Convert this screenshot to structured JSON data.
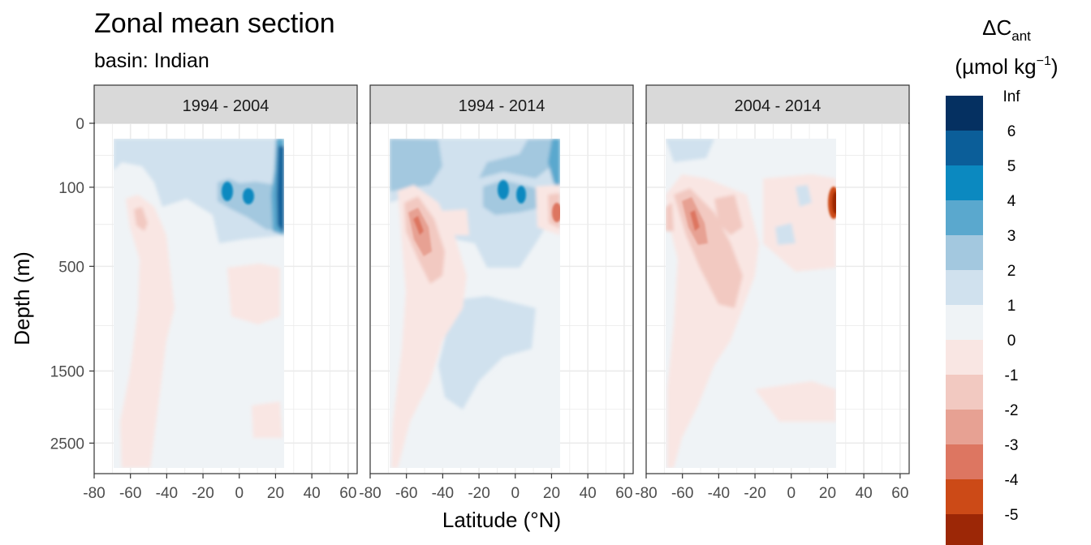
{
  "chart_data": {
    "type": "heatmap",
    "title": "Zonal mean section",
    "subtitle": "basin: Indian",
    "xlabel": "Latitude (°N)",
    "ylabel": "Depth (m)",
    "xlim": [
      -80,
      65
    ],
    "x_ticks": [
      -80,
      -60,
      -40,
      -20,
      0,
      20,
      40,
      60
    ],
    "y_scale": "sqrt",
    "ylim_depth": [
      3000,
      0
    ],
    "y_ticks": [
      0,
      100,
      500,
      1500,
      2500
    ],
    "data_extent": {
      "lat": [
        -70,
        24
      ],
      "depth": [
        10,
        3000
      ]
    },
    "grid": true,
    "facets": [
      {
        "label": "1994 - 2004"
      },
      {
        "label": "1994 - 2014"
      },
      {
        "label": "2004 - 2014"
      }
    ],
    "legend": {
      "title_main": "ΔC",
      "title_sub": "ant",
      "unit_open": "(µmol kg",
      "unit_sup": "−1",
      "unit_close": ")",
      "placement": "right",
      "breaks": [
        "Inf",
        "6",
        "5",
        "4",
        "3",
        "2",
        "1",
        "0",
        "-1",
        "-2",
        "-3",
        "-4",
        "-5"
      ],
      "colors": [
        "#053061",
        "#0b5e99",
        "#0b89c0",
        "#5aa8ce",
        "#a3c8df",
        "#d0e1ee",
        "#eff3f6",
        "#f9e6e3",
        "#f2c9c1",
        "#e7a193",
        "#dd7661",
        "#cc4a17",
        "#9c2706"
      ]
    }
  }
}
